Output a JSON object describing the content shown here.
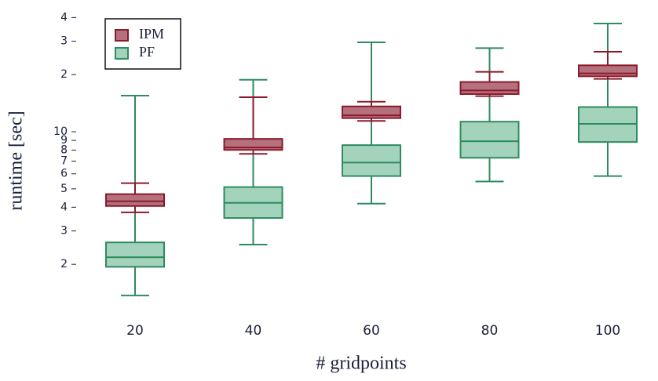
{
  "chart_data": {
    "type": "box",
    "xlabel": "# gridpoints",
    "ylabel": "runtime [sec]",
    "categories": [
      "20",
      "40",
      "60",
      "80",
      "100"
    ],
    "log_y": true,
    "ylim": [
      1.1,
      45
    ],
    "yticks": [
      2,
      3,
      4,
      5,
      6,
      7,
      8,
      9,
      10,
      {
        "value": 20,
        "label": "2"
      },
      {
        "value": 30,
        "label": "3"
      },
      {
        "value": 40,
        "label": "4"
      }
    ],
    "grid": false,
    "legend": "upper left",
    "series": [
      {
        "name": "IPM",
        "color": "#8b1a2b",
        "fill": "#b5707e",
        "min": [
          3.76,
          7.65,
          11.4,
          15.4,
          19.0
        ],
        "q1": [
          4.06,
          8.02,
          11.8,
          15.8,
          19.6
        ],
        "median": [
          4.3,
          8.26,
          12.2,
          16.5,
          20.3
        ],
        "q3": [
          4.69,
          9.17,
          13.6,
          18.3,
          22.4
        ],
        "max": [
          5.36,
          15.2,
          14.4,
          20.7,
          26.4
        ]
      },
      {
        "name": "PF",
        "color": "#2e8b60",
        "fill": "#a3d3ba",
        "min": [
          1.37,
          2.54,
          4.18,
          5.47,
          5.84
        ],
        "q1": [
          1.94,
          3.51,
          5.84,
          7.29,
          8.83
        ],
        "median": [
          2.18,
          4.22,
          6.88,
          8.91,
          11.0
        ],
        "q3": [
          2.61,
          5.11,
          8.5,
          11.3,
          13.5
        ],
        "max": [
          15.5,
          18.8,
          29.6,
          27.6,
          37.2
        ]
      }
    ]
  }
}
